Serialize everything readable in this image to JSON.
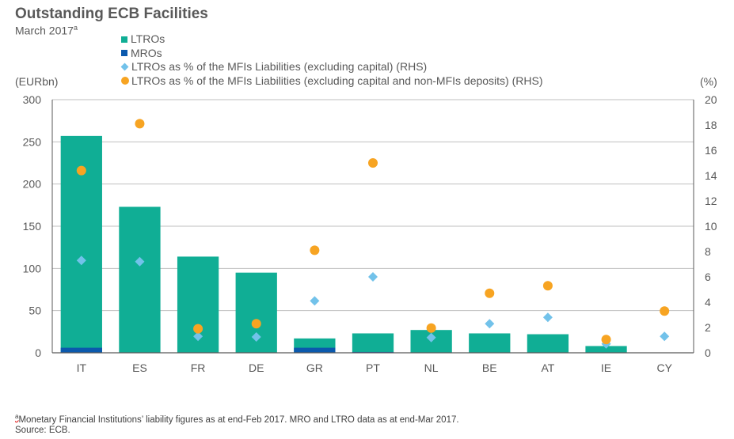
{
  "header": {
    "title": "Outstanding ECB Facilities",
    "subtitle": "March 2017",
    "subtitle_note_marker": "a"
  },
  "colors": {
    "ltro": "#10AE95",
    "mro": "#0B59AD",
    "pct_liab": "#72C2EA",
    "pct_liab_nondep": "#F7A422",
    "grid": "#BFBFBF",
    "axis": "#595959"
  },
  "chart_data": {
    "type": "bar",
    "title": "Outstanding ECB Facilities",
    "subtitle": "March 2017",
    "categories": [
      "IT",
      "ES",
      "FR",
      "DE",
      "GR",
      "PT",
      "NL",
      "BE",
      "AT",
      "IE",
      "CY"
    ],
    "ylabel": "(EURbn)",
    "y2label": "(%)",
    "ylim": [
      0,
      300
    ],
    "y2lim": [
      0,
      20
    ],
    "yticks": [
      0,
      50,
      100,
      150,
      200,
      250,
      300
    ],
    "y2ticks": [
      0,
      2,
      4,
      6,
      8,
      10,
      12,
      14,
      16,
      18,
      20
    ],
    "grid": true,
    "legend_position": "top",
    "series": [
      {
        "name": "LTROs",
        "kind": "bar",
        "axis": "left",
        "stack_total": true,
        "values": [
          257,
          173,
          114,
          95,
          17,
          23,
          27,
          23,
          22,
          8,
          0
        ]
      },
      {
        "name": "MROs",
        "kind": "bar",
        "axis": "left",
        "values": [
          6,
          0,
          0,
          0,
          6,
          1,
          0,
          0,
          0,
          0,
          0
        ]
      },
      {
        "name": "LTROs as % of the MFIs Liabilities (excluding capital) (RHS)",
        "kind": "diamond",
        "axis": "right",
        "values": [
          7.3,
          7.2,
          1.3,
          1.25,
          4.1,
          6.0,
          1.2,
          2.3,
          2.8,
          0.7,
          1.3
        ]
      },
      {
        "name": "LTROs as % of the MFIs Liabilities (excluding capital and non-MFIs deposits) (RHS)",
        "kind": "circle",
        "axis": "right",
        "values": [
          14.4,
          18.1,
          1.9,
          2.3,
          8.1,
          15.0,
          1.95,
          4.7,
          5.3,
          1.05,
          3.3
        ]
      }
    ]
  },
  "legend": [
    {
      "label": "LTROs",
      "marker": "square",
      "color_key": "ltro"
    },
    {
      "label": "MROs",
      "marker": "square",
      "color_key": "mro"
    },
    {
      "label": "LTROs as % of the MFIs Liabilities (excluding capital) (RHS)",
      "marker": "diamond",
      "color_key": "pct_liab"
    },
    {
      "label": "LTROs as % of the MFIs Liabilities (excluding capital and non-MFIs deposits) (RHS)",
      "marker": "circle",
      "color_key": "pct_liab_nondep"
    }
  ],
  "axes": {
    "left_unit": "(EURbn)",
    "right_unit": "(%)"
  },
  "footnote": {
    "marker": "a",
    "text": "Monetary Financial Institutions’ liability figures  as at end-Feb 2017.  MRO and LTRO  data as at end-Mar 2017.",
    "source": "Source: ECB."
  }
}
